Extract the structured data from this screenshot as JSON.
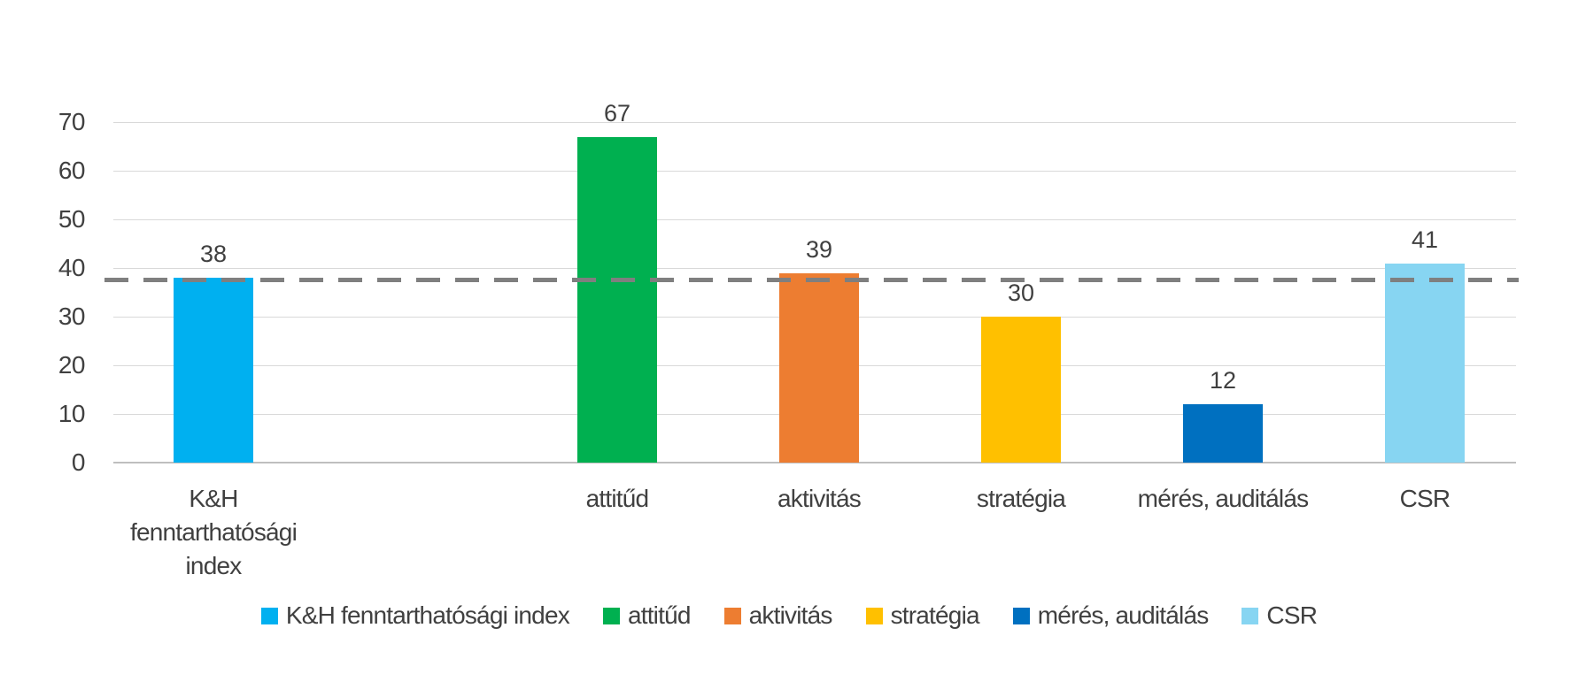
{
  "colors": {
    "background": "#ffffff",
    "axis_text": "#404040",
    "gridline": "#d9d9d9",
    "axis_baseline": "#bfbfbf",
    "reference_line": "#7f7f7f"
  },
  "chart_data": {
    "type": "bar",
    "title": "",
    "xlabel": "",
    "ylabel": "",
    "categories": [
      "K&H fenntarthatósági index",
      "attitűd",
      "aktivitás",
      "stratégia",
      "mérés, auditálás",
      "CSR"
    ],
    "category_label_lines": [
      [
        "K&H",
        "fenntarthatósági",
        "index"
      ],
      [
        "attitűd"
      ],
      [
        "aktivitás"
      ],
      [
        "stratégia"
      ],
      [
        "mérés, auditálás"
      ],
      [
        "CSR"
      ]
    ],
    "values": [
      38,
      67,
      39,
      30,
      12,
      41
    ],
    "bar_colors": [
      "#00b0f0",
      "#00b050",
      "#ed7d31",
      "#ffc000",
      "#0070c0",
      "#87d5f2"
    ],
    "ylim": [
      0,
      70
    ],
    "yticks": [
      0,
      10,
      20,
      30,
      40,
      50,
      60,
      70
    ],
    "grid": true,
    "reference_line": {
      "value": 37.5,
      "style": "dashed",
      "color": "#7f7f7f"
    },
    "legend": {
      "position": "bottom",
      "entries": [
        {
          "label": "K&H fenntarthatósági index",
          "color": "#00b0f0"
        },
        {
          "label": "attitűd",
          "color": "#00b050"
        },
        {
          "label": "aktivitás",
          "color": "#ed7d31"
        },
        {
          "label": "stratégia",
          "color": "#ffc000"
        },
        {
          "label": "mérés, auditálás",
          "color": "#0070c0"
        },
        {
          "label": "CSR",
          "color": "#87d5f2"
        }
      ]
    }
  }
}
